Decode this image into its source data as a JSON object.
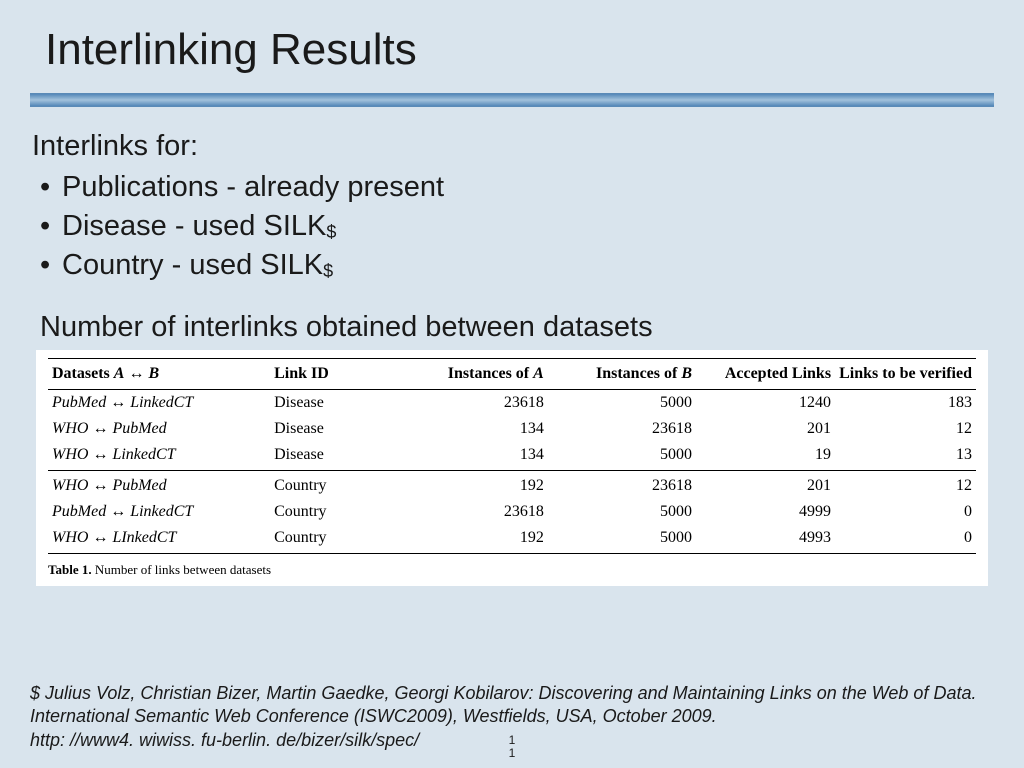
{
  "slide": {
    "title": "Interlinking Results",
    "intro": "Interlinks for:",
    "bullets": [
      {
        "text_full": "Publications - already present",
        "has_dollar": false
      },
      {
        "text_full": "Disease - used SILK",
        "has_dollar": true
      },
      {
        "text_full": "Country - used SILK",
        "has_dollar": true
      }
    ],
    "subtitle": "Number of interlinks obtained between datasets",
    "table": {
      "columns": [
        "Datasets A ↔ B",
        "Link ID",
        "Instances of A",
        "Instances of B",
        "Accepted Links",
        "Links to be verified"
      ],
      "col_header_italics": [
        [
          "A",
          "B"
        ],
        [],
        [
          "A"
        ],
        [
          "B"
        ],
        [],
        []
      ],
      "rows_group1": [
        {
          "ds": "PubMed ↔ LinkedCT",
          "link": "Disease",
          "ia": "23618",
          "ib": "5000",
          "acc": "1240",
          "ver": "183"
        },
        {
          "ds": "WHO ↔ PubMed",
          "link": "Disease",
          "ia": "134",
          "ib": "23618",
          "acc": "201",
          "ver": "12"
        },
        {
          "ds": "WHO ↔ LinkedCT",
          "link": "Disease",
          "ia": "134",
          "ib": "5000",
          "acc": "19",
          "ver": "13"
        }
      ],
      "rows_group2": [
        {
          "ds": "WHO ↔ PubMed",
          "link": "Country",
          "ia": "192",
          "ib": "23618",
          "acc": "201",
          "ver": "12"
        },
        {
          "ds": "PubMed ↔ LinkedCT",
          "link": "Country",
          "ia": "23618",
          "ib": "5000",
          "acc": "4999",
          "ver": "0"
        },
        {
          "ds": "WHO ↔ LInkedCT",
          "link": "Country",
          "ia": "192",
          "ib": "5000",
          "acc": "4993",
          "ver": "0"
        }
      ],
      "caption_label": "Table 1.",
      "caption_text": "Number of links between datasets"
    },
    "footnote": "$ Julius Volz, Christian Bizer, Martin Gaedke, Georgi Kobilarov: Discovering and Maintaining Links on the Web of Data. International Semantic Web Conference (ISWC2009), Westfields, USA, October 2009.\nhttp: //www4. wiwiss. fu-berlin. de/bizer/silk/spec/",
    "page_top": "1",
    "page_bottom": "1"
  },
  "style": {
    "background_color": "#d9e4ed",
    "divider_colors": [
      "#5487b8",
      "#a3c2dc",
      "#5487b8"
    ],
    "table_bg": "#ffffff",
    "title_fontsize": 44,
    "body_fontsize": 29,
    "table_fontsize": 16,
    "footnote_fontsize": 18,
    "col_widths_pct": [
      24,
      14,
      16,
      16,
      15,
      15
    ]
  }
}
